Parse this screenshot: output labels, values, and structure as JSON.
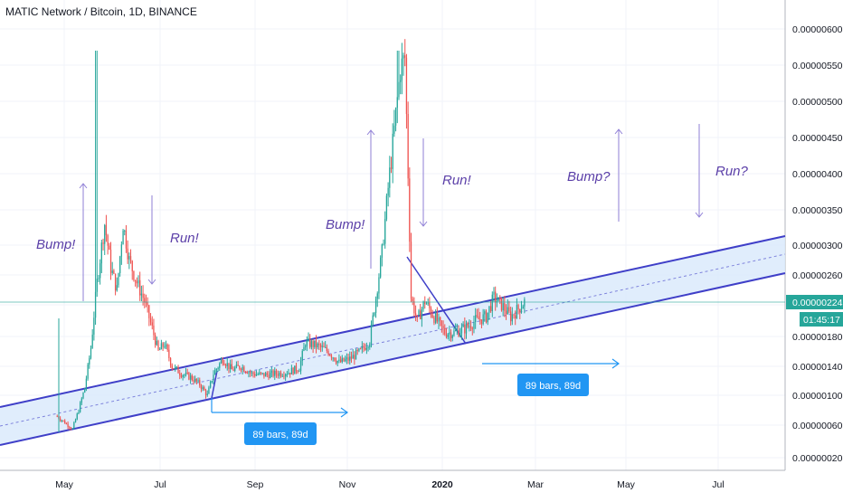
{
  "title": "MATIC Network / Bitcoin, 1D, BINANCE",
  "colors": {
    "up": "#26a69a",
    "down": "#ef5350",
    "grid": "#f0f3fa",
    "axis": "#131722",
    "channel_line": "#3f3fc8",
    "channel_fill": "#dbeafb",
    "arrow": "#8f7fd6",
    "annotation": "#5b3fa8",
    "range_arrow": "#2196f3",
    "label_bg": "#2196f3",
    "current": "#26a69a"
  },
  "chart_data": {
    "type": "candlestick",
    "title": "MATIC Network / Bitcoin, 1D, BINANCE",
    "y_ticks": [
      "0.00000020",
      "0.00000060",
      "0.00000100",
      "0.00000140",
      "0.00000180",
      "0.00000220",
      "0.00000260",
      "0.00000300",
      "0.00000350",
      "0.00000400",
      "0.00000450",
      "0.00000500",
      "0.00000550",
      "0.00000600"
    ],
    "x_ticks": [
      "May",
      "Jul",
      "Sep",
      "Nov",
      "2020",
      "Mar",
      "May",
      "Jul"
    ],
    "current_price": "0.00000224",
    "countdown": "01:45:17",
    "annotations": [
      "Bump!",
      "Run!",
      "Bump!",
      "Run!",
      "Bump?",
      "Run?"
    ],
    "range_labels": [
      "89 bars, 89d",
      "89 bars, 89d"
    ],
    "series_path": [
      [
        "2019-04-26",
        7.2e-07
      ],
      [
        "2019-05-03",
        6e-07
      ],
      [
        "2019-05-06",
        5.5e-07
      ],
      [
        "2019-05-10",
        8e-07
      ],
      [
        "2019-05-14",
        1.1e-06
      ],
      [
        "2019-05-18",
        1.65e-06
      ],
      [
        "2019-05-22",
        2.5e-06
      ],
      [
        "2019-05-27",
        3.3e-06
      ],
      [
        "2019-05-31",
        2.7e-06
      ],
      [
        "2019-06-04",
        2.4e-06
      ],
      [
        "2019-06-08",
        3.3e-06
      ],
      [
        "2019-06-12",
        2.8e-06
      ],
      [
        "2019-06-17",
        2.5e-06
      ],
      [
        "2019-06-22",
        2.25e-06
      ],
      [
        "2019-06-27",
        1.9e-06
      ],
      [
        "2019-07-01",
        1.6e-06
      ],
      [
        "2019-07-05",
        1.7e-06
      ],
      [
        "2019-07-10",
        1.4e-06
      ],
      [
        "2019-07-16",
        1.3e-06
      ],
      [
        "2019-07-22",
        1.25e-06
      ],
      [
        "2019-07-28",
        1.15e-06
      ],
      [
        "2019-08-02",
        1e-06
      ],
      [
        "2019-08-06",
        1.3e-06
      ],
      [
        "2019-08-12",
        1.5e-06
      ],
      [
        "2019-08-18",
        1.35e-06
      ],
      [
        "2019-08-24",
        1.4e-06
      ],
      [
        "2019-08-31",
        1.3e-06
      ],
      [
        "2019-09-08",
        1.28e-06
      ],
      [
        "2019-09-16",
        1.3e-06
      ],
      [
        "2019-09-24",
        1.32e-06
      ],
      [
        "2019-10-01",
        1.38e-06
      ],
      [
        "2019-10-05",
        1.72e-06
      ],
      [
        "2019-10-12",
        1.68e-06
      ],
      [
        "2019-10-20",
        1.6e-06
      ],
      [
        "2019-10-27",
        1.45e-06
      ],
      [
        "2019-11-03",
        1.5e-06
      ],
      [
        "2019-11-10",
        1.6e-06
      ],
      [
        "2019-11-16",
        1.75e-06
      ],
      [
        "2019-11-20",
        2.3e-06
      ],
      [
        "2019-11-24",
        2.9e-06
      ],
      [
        "2019-11-28",
        3.8e-06
      ],
      [
        "2019-12-02",
        4.6e-06
      ],
      [
        "2019-12-06",
        5.45e-06
      ],
      [
        "2019-12-09",
        5.6e-06
      ],
      [
        "2019-12-11",
        4e-06
      ],
      [
        "2019-12-13",
        2.3e-06
      ],
      [
        "2019-12-17",
        2e-06
      ],
      [
        "2019-12-22",
        2.25e-06
      ],
      [
        "2019-12-28",
        2.05e-06
      ],
      [
        "2020-01-04",
        1.85e-06
      ],
      [
        "2020-01-10",
        1.85e-06
      ],
      [
        "2020-01-17",
        1.9e-06
      ],
      [
        "2020-01-24",
        2e-06
      ],
      [
        "2020-01-31",
        2.05e-06
      ],
      [
        "2020-02-05",
        2.3e-06
      ],
      [
        "2020-02-10",
        2.2e-06
      ],
      [
        "2020-02-16",
        2.05e-06
      ],
      [
        "2020-02-21",
        2.15e-06
      ],
      [
        "2020-02-25",
        2.24e-06
      ]
    ]
  }
}
